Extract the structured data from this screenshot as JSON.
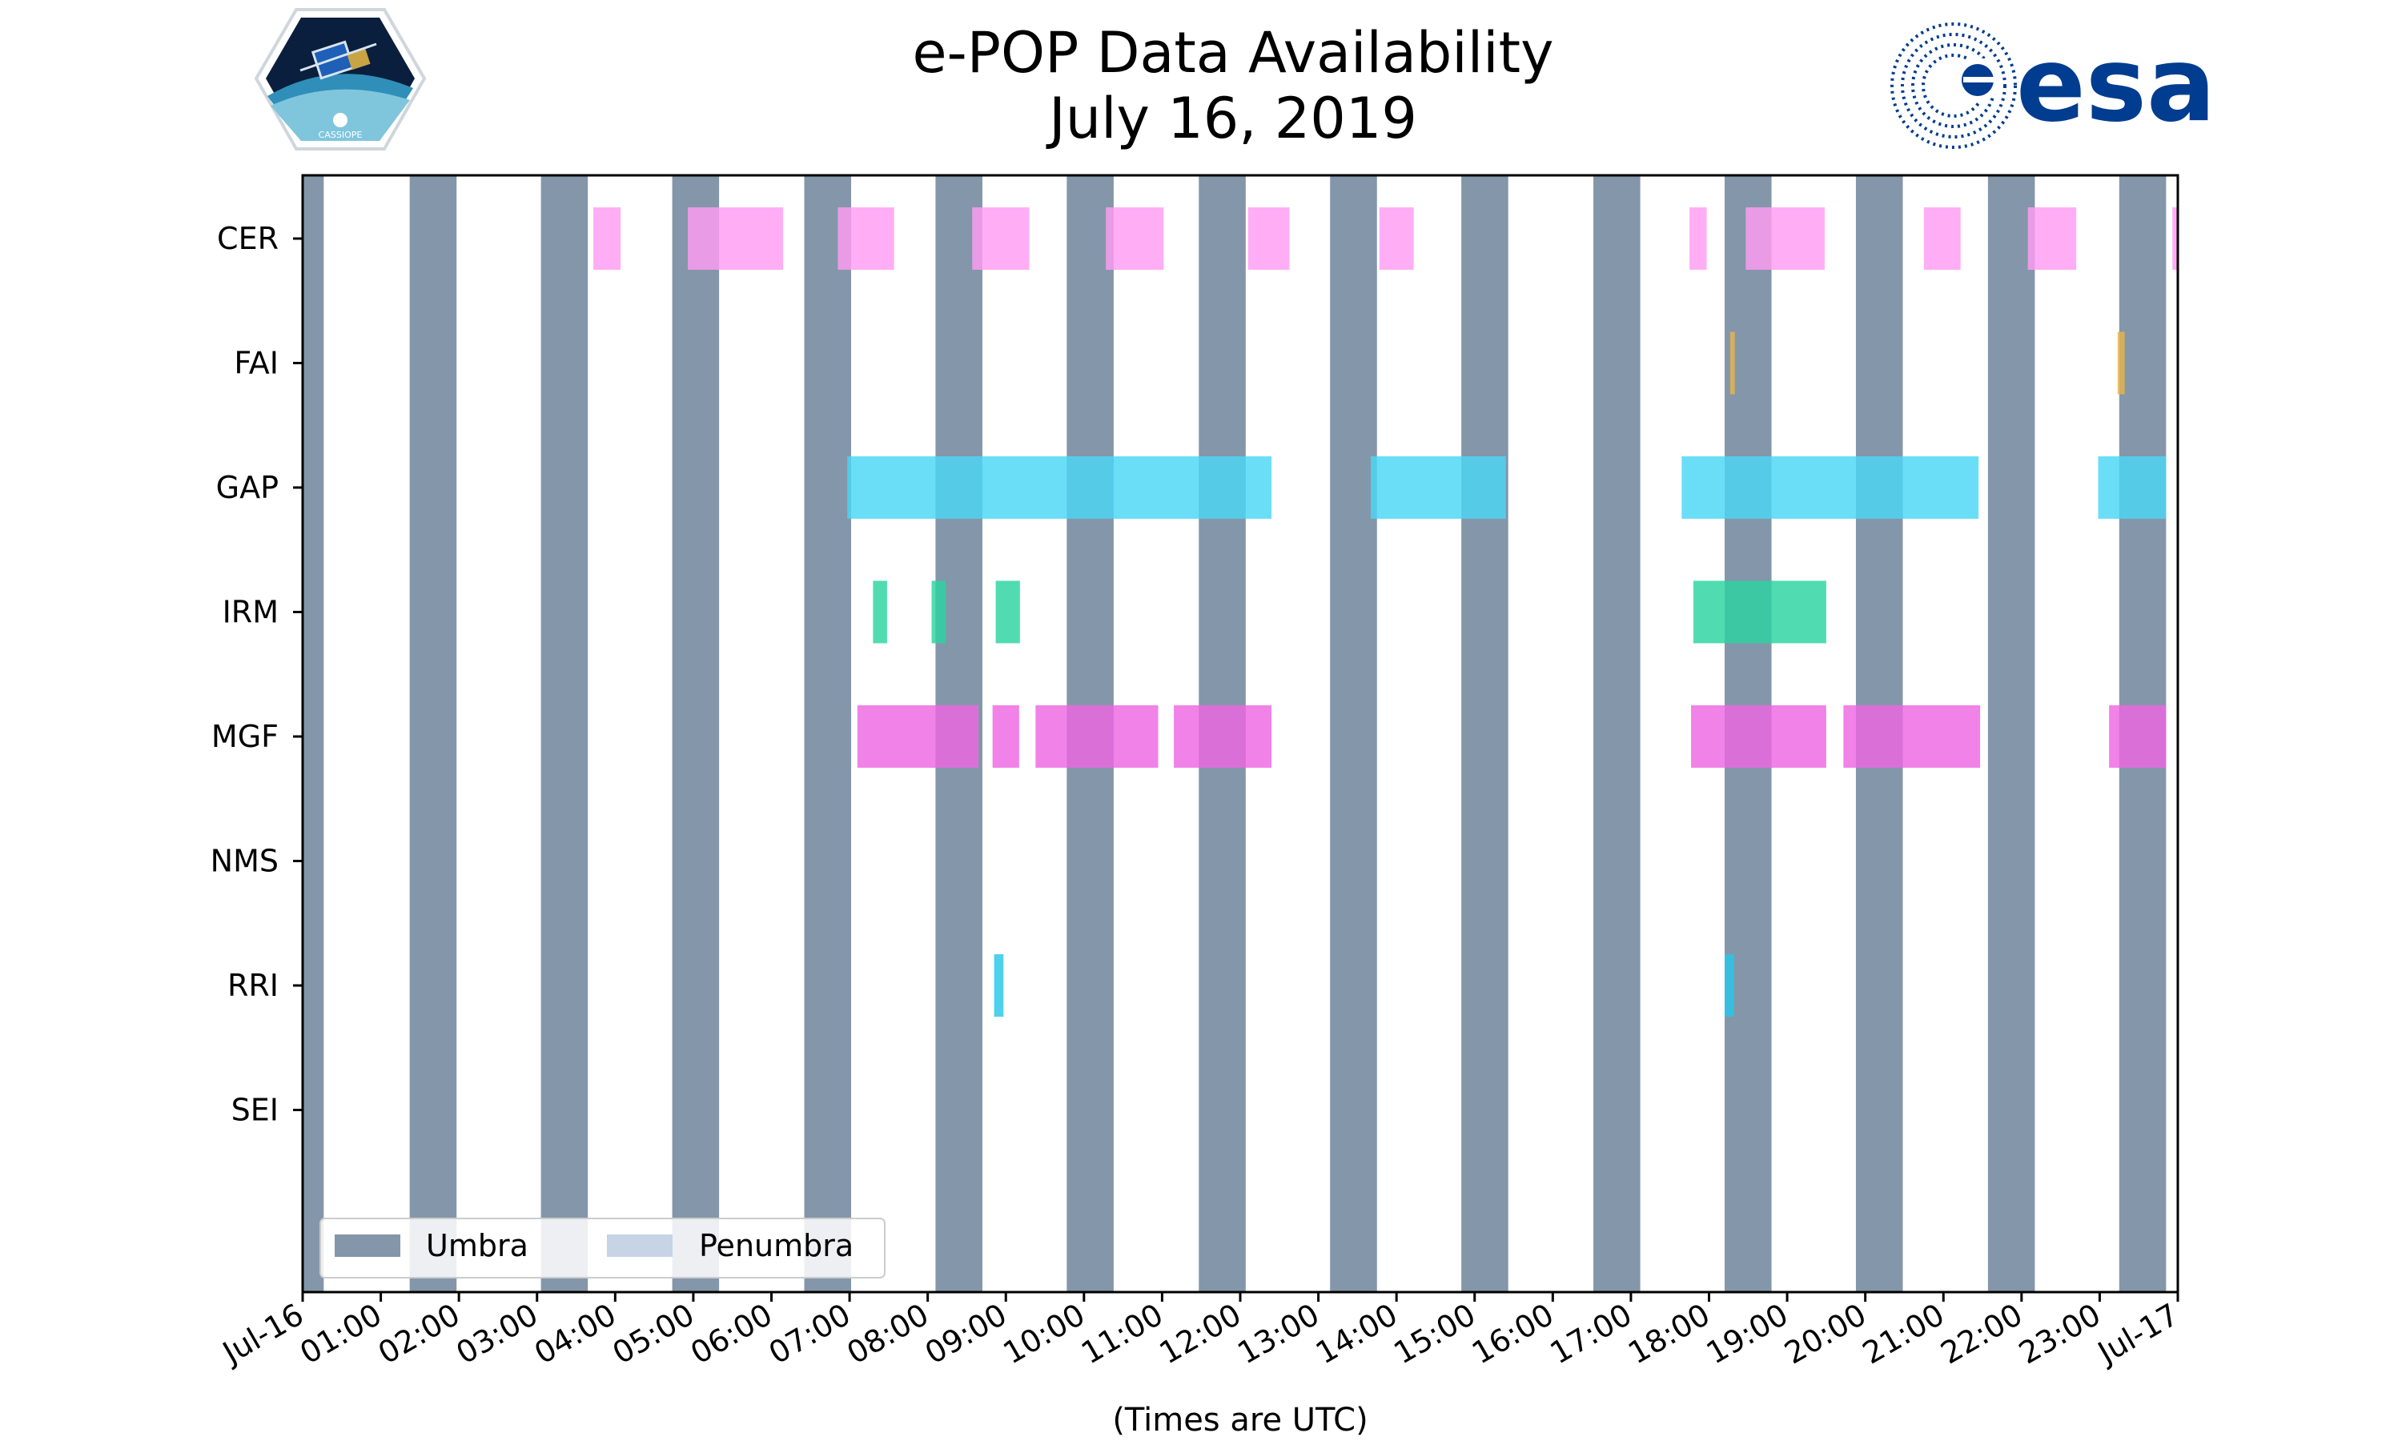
{
  "logos": {
    "left_caption": "CASSIOPE",
    "right_text": "esa"
  },
  "colors": {
    "umbra": "#8496a9",
    "penumbra": "#c6d4e5",
    "CER": "#ff9cf3",
    "FAI": "#e8b44a",
    "GAP": "#4ad7f5",
    "IRM": "#2bd3a0",
    "MGF": "#ee67e2",
    "NMS": "#999999",
    "RRI": "#28c6ea",
    "SEI": "#999999",
    "esa_blue": "#003c8f"
  },
  "chart_data": {
    "type": "timeline",
    "title": "e-POP Data Availability",
    "subtitle": "July 16, 2019",
    "xlabel": "(Times are UTC)",
    "xlim": [
      0,
      24
    ],
    "xtick_labels": [
      "Jul-16",
      "01:00",
      "02:00",
      "03:00",
      "04:00",
      "05:00",
      "06:00",
      "07:00",
      "08:00",
      "09:00",
      "10:00",
      "11:00",
      "12:00",
      "13:00",
      "14:00",
      "15:00",
      "16:00",
      "17:00",
      "18:00",
      "19:00",
      "20:00",
      "21:00",
      "22:00",
      "23:00",
      "Jul-17"
    ],
    "categories": [
      "CER",
      "FAI",
      "GAP",
      "IRM",
      "MGF",
      "NMS",
      "RRI",
      "SEI"
    ],
    "umbra": [
      [
        0.0,
        0.27
      ],
      [
        1.37,
        1.97
      ],
      [
        3.05,
        3.65
      ],
      [
        4.73,
        5.33
      ],
      [
        6.42,
        7.02
      ],
      [
        8.1,
        8.7
      ],
      [
        9.78,
        10.38
      ],
      [
        11.47,
        12.07
      ],
      [
        13.15,
        13.75
      ],
      [
        14.83,
        15.43
      ],
      [
        16.52,
        17.12
      ],
      [
        18.2,
        18.8
      ],
      [
        19.88,
        20.48
      ],
      [
        21.57,
        22.17
      ],
      [
        23.25,
        23.85
      ]
    ],
    "legend": [
      "Umbra",
      "Penumbra"
    ],
    "legend_location": "lower-left",
    "series": [
      {
        "name": "CER",
        "intervals": [
          [
            3.72,
            4.07
          ],
          [
            4.93,
            6.15
          ],
          [
            6.85,
            7.57
          ],
          [
            8.57,
            9.3
          ],
          [
            10.28,
            11.02
          ],
          [
            12.1,
            12.63
          ],
          [
            13.78,
            14.22
          ],
          [
            17.75,
            17.97
          ],
          [
            18.47,
            19.48
          ],
          [
            20.75,
            21.22
          ],
          [
            22.08,
            22.7
          ],
          [
            23.93,
            24.0
          ]
        ]
      },
      {
        "name": "FAI",
        "intervals": [
          [
            18.27,
            18.33
          ],
          [
            23.23,
            23.32
          ]
        ]
      },
      {
        "name": "GAP",
        "intervals": [
          [
            6.97,
            12.4
          ],
          [
            13.67,
            15.4
          ],
          [
            17.65,
            21.45
          ],
          [
            22.98,
            23.85
          ]
        ]
      },
      {
        "name": "IRM",
        "intervals": [
          [
            7.3,
            7.48
          ],
          [
            8.05,
            8.23
          ],
          [
            8.87,
            9.18
          ],
          [
            17.8,
            19.5
          ]
        ]
      },
      {
        "name": "MGF",
        "intervals": [
          [
            7.1,
            8.65
          ],
          [
            8.83,
            9.17
          ],
          [
            9.38,
            10.95
          ],
          [
            11.15,
            12.4
          ],
          [
            17.77,
            19.5
          ],
          [
            19.72,
            21.47
          ],
          [
            23.12,
            23.85
          ]
        ]
      },
      {
        "name": "NMS",
        "intervals": []
      },
      {
        "name": "RRI",
        "intervals": [
          [
            8.85,
            8.97
          ],
          [
            18.2,
            18.32
          ]
        ]
      },
      {
        "name": "SEI",
        "intervals": []
      }
    ]
  }
}
